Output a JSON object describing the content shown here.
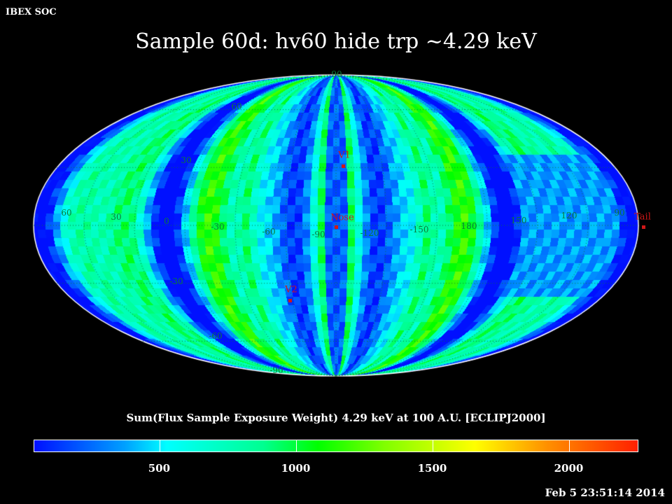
{
  "header": {
    "org_label": "IBEX SOC",
    "title": "Sample 60d: hv60 hide trp ~4.29 keV"
  },
  "map": {
    "projection": "mollweide",
    "longitude_labels": [
      "60",
      "30",
      "0",
      "-30",
      "-60",
      "-90",
      "-120",
      "-150",
      "180",
      "150",
      "120",
      "90"
    ],
    "latitude_labels": [
      "90",
      "60",
      "30",
      "-30",
      "-60",
      "-90"
    ],
    "markers": [
      {
        "label": "V1"
      },
      {
        "label": "Nose"
      },
      {
        "label": "V2"
      },
      {
        "label": "Tail"
      }
    ],
    "marker_color": "#d01818",
    "grid_color": "#0a7a3a"
  },
  "colorbar": {
    "title": "Sum(Flux Sample Exposure Weight)  4.29 keV at 100 A.U. [ECLIPJ2000]",
    "ticks": [
      "500",
      "1000",
      "1500",
      "2000"
    ],
    "range": [
      40,
      2250
    ],
    "colors": [
      "#0010ff",
      "#00ffff",
      "#00ff00",
      "#ffff00",
      "#ff2000"
    ]
  },
  "footer": {
    "timestamp": "Feb  5 23:51:14 2014"
  }
}
